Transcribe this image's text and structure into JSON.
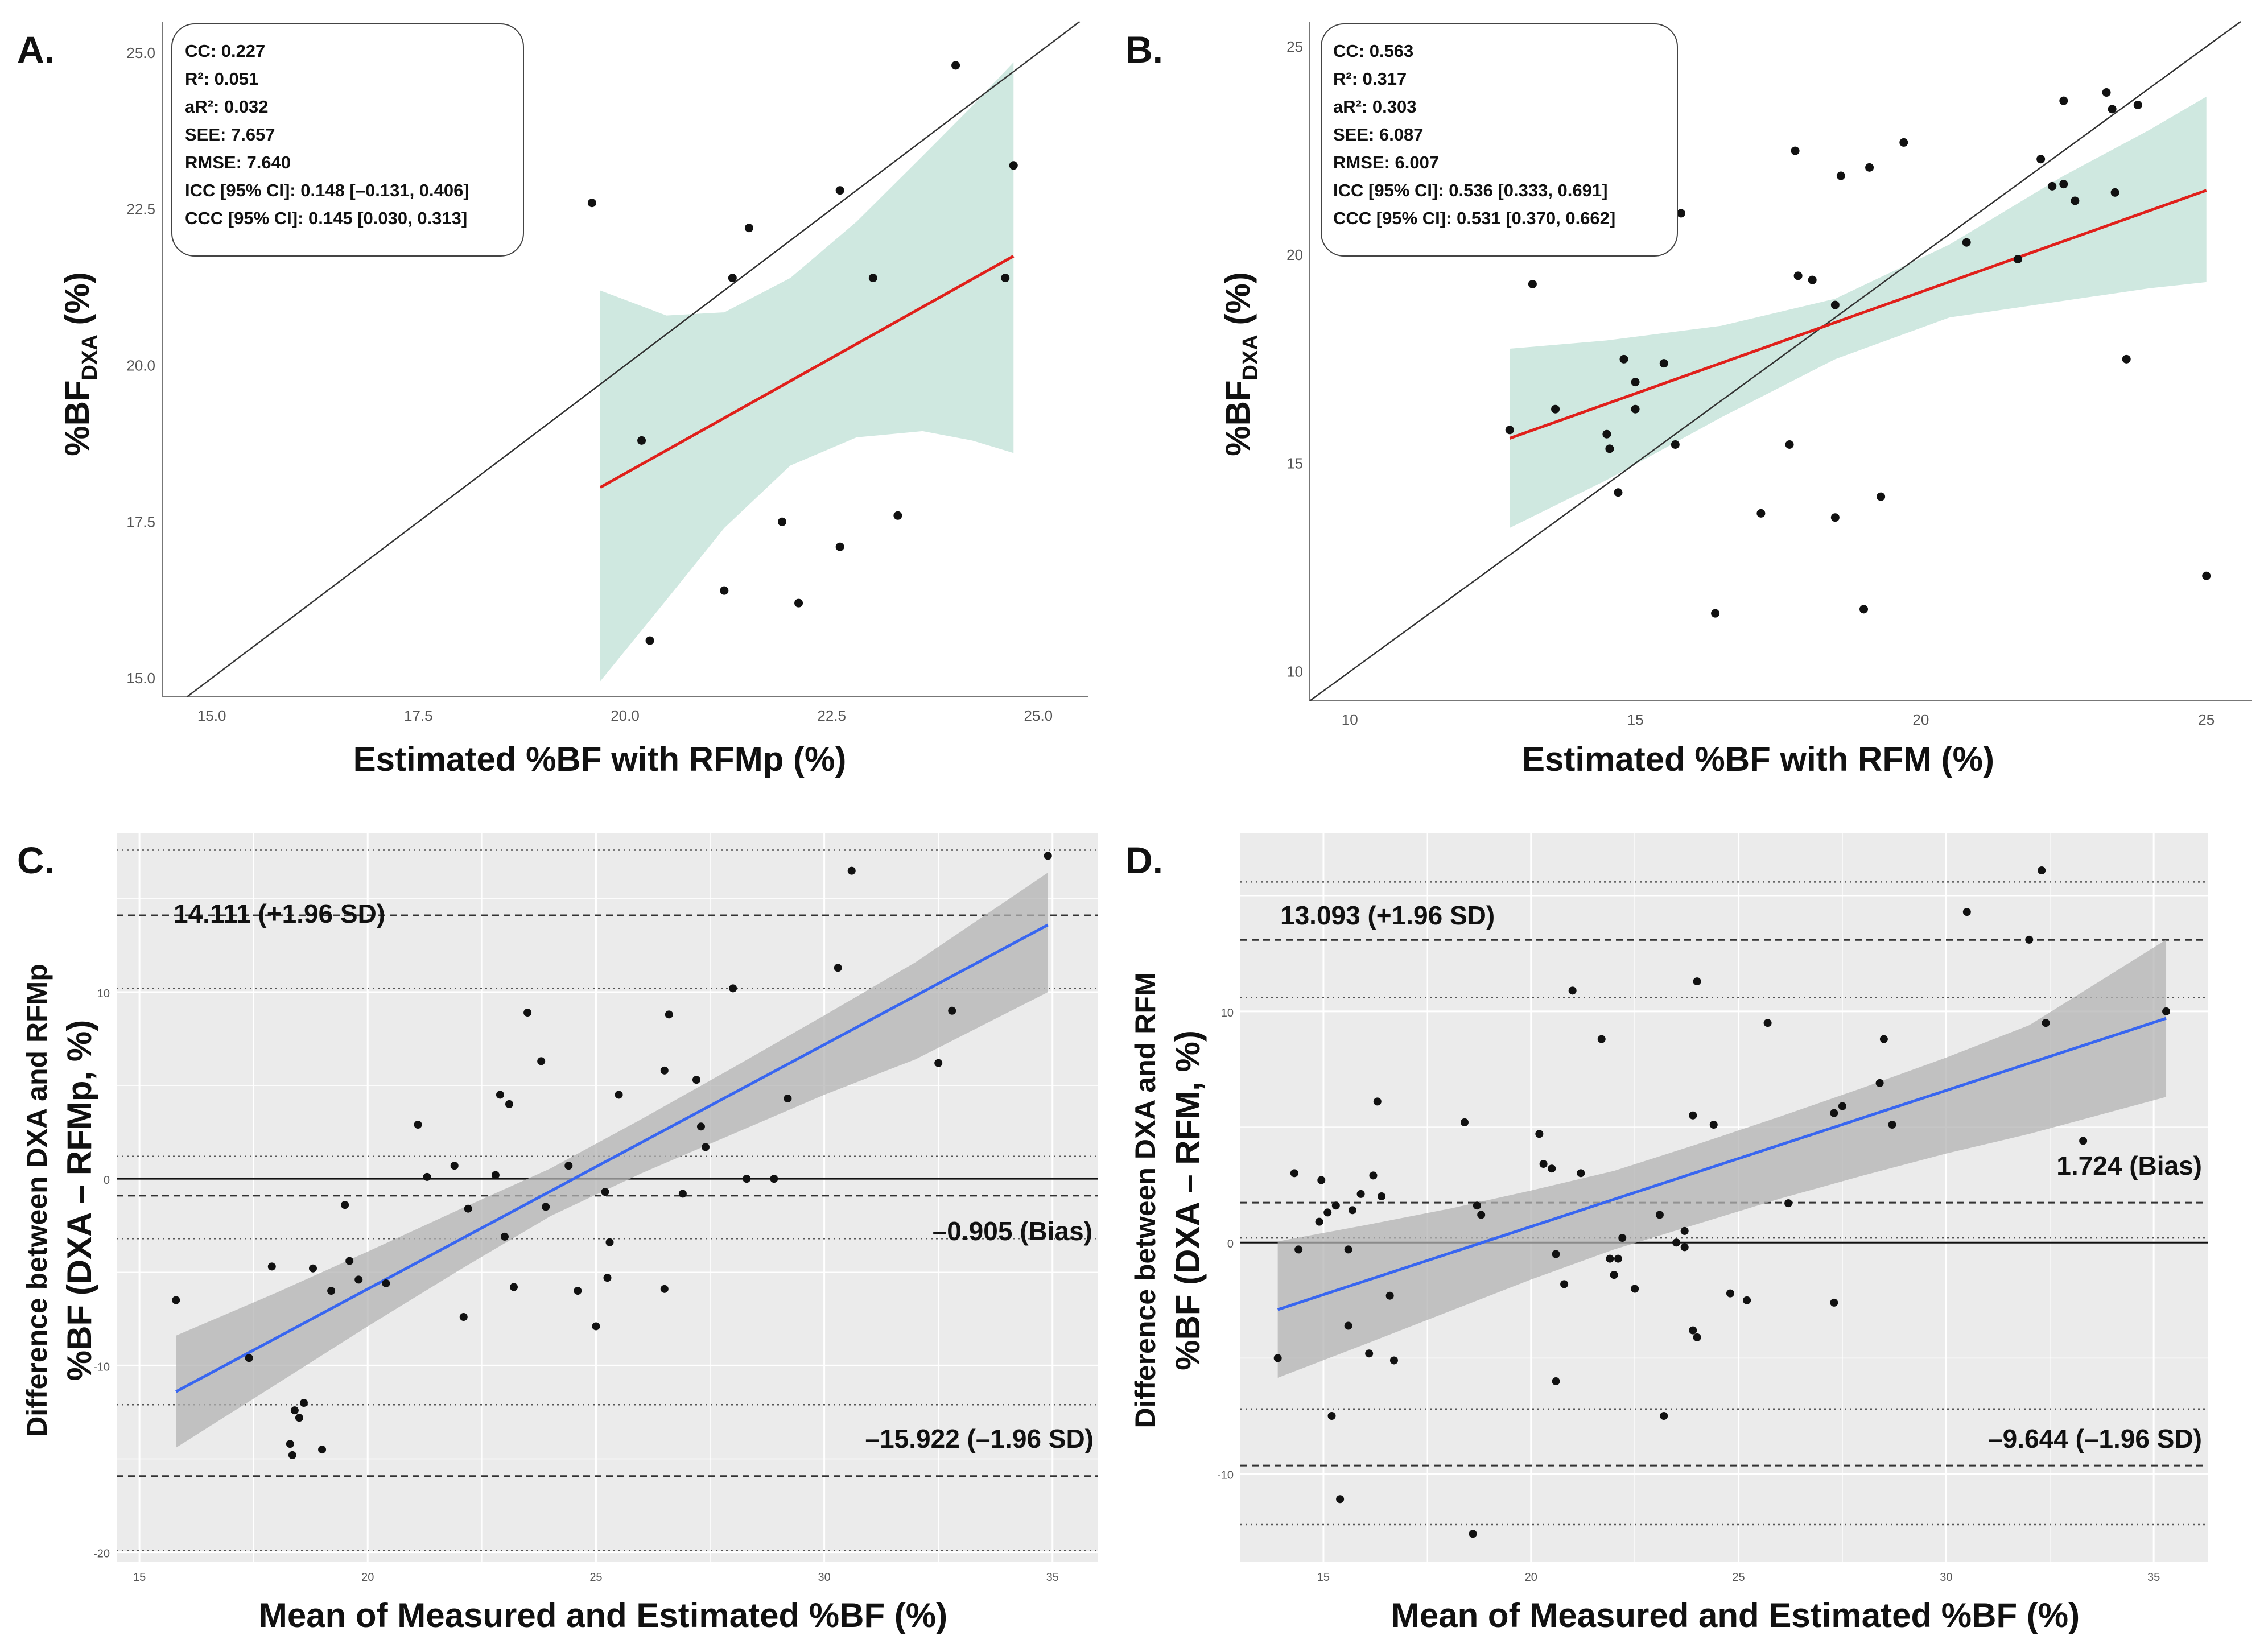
{
  "chart_data": [
    {
      "panel": "A.",
      "type": "scatter",
      "xlabel": "Estimated %BF with RFMp (%)",
      "ylabel": "%BF",
      "ylabel_sub": "DXA",
      "ylabel_tail": " (%)",
      "xlim": [
        14.4,
        25.6
      ],
      "ylim": [
        14.7,
        25.5
      ],
      "xticks": [
        "15.0",
        "17.5",
        "20.0",
        "22.5",
        "25.0"
      ],
      "yticks": [
        "15.0",
        "17.5",
        "20.0",
        "22.5",
        "25.0"
      ],
      "grid": false,
      "stats": [
        "CC: 0.227",
        "R²: 0.051",
        "aR²: 0.032",
        "SEE: 7.657",
        "RMSE: 7.640",
        "ICC [95% CI]: 0.148 [–0.131, 0.406]",
        "CCC [95% CI]: 0.145 [0.030, 0.313]"
      ],
      "points": [
        [
          19.6,
          22.6
        ],
        [
          20.2,
          18.8
        ],
        [
          20.3,
          15.6
        ],
        [
          21.2,
          16.4
        ],
        [
          21.3,
          21.4
        ],
        [
          21.5,
          22.2
        ],
        [
          21.9,
          17.5
        ],
        [
          22.1,
          16.2
        ],
        [
          22.6,
          17.1
        ],
        [
          22.6,
          22.8
        ],
        [
          23.0,
          21.4
        ],
        [
          23.3,
          17.6
        ],
        [
          24.0,
          24.8
        ],
        [
          24.6,
          21.4
        ],
        [
          24.7,
          23.2
        ]
      ],
      "fit": {
        "x": [
          19.7,
          24.7
        ],
        "y": [
          18.05,
          21.75
        ]
      },
      "band": {
        "x": [
          19.7,
          20.5,
          21.2,
          22.0,
          22.8,
          23.6,
          24.2,
          24.7
        ],
        "upper": [
          21.2,
          20.8,
          20.85,
          21.4,
          22.3,
          23.35,
          24.15,
          24.85
        ],
        "lower": [
          14.95,
          16.25,
          17.4,
          18.4,
          18.85,
          18.95,
          18.8,
          18.6
        ]
      },
      "identity_line": true,
      "colors": {
        "fit": "#e0201b",
        "band": "#cfe8e0",
        "points": "#111111"
      }
    },
    {
      "panel": "B.",
      "type": "scatter",
      "xlabel": "Estimated %BF with RFM (%)",
      "ylabel": "%BF",
      "ylabel_sub": "DXA",
      "ylabel_tail": " (%)",
      "xlim": [
        9.3,
        25.8
      ],
      "ylim": [
        9.3,
        25.6
      ],
      "xticks": [
        "10",
        "15",
        "20",
        "25"
      ],
      "yticks": [
        "10",
        "15",
        "20",
        "25"
      ],
      "grid": false,
      "stats": [
        "CC: 0.563",
        "R²: 0.317",
        "aR²: 0.303",
        "SEE: 6.087",
        "RMSE: 6.007",
        "ICC [95% CI]: 0.536 [0.333, 0.691]",
        "CCC [95% CI]: 0.531 [0.370, 0.662]"
      ],
      "points": [
        [
          12.8,
          15.8
        ],
        [
          13.2,
          19.3
        ],
        [
          13.6,
          16.3
        ],
        [
          14.5,
          15.7
        ],
        [
          14.55,
          15.35
        ],
        [
          14.7,
          14.3
        ],
        [
          14.8,
          17.5
        ],
        [
          15.0,
          16.95
        ],
        [
          15.0,
          16.3
        ],
        [
          15.5,
          17.4
        ],
        [
          15.7,
          15.45
        ],
        [
          15.8,
          21.0
        ],
        [
          16.4,
          11.4
        ],
        [
          17.2,
          13.8
        ],
        [
          17.8,
          22.5
        ],
        [
          17.7,
          15.45
        ],
        [
          17.85,
          19.5
        ],
        [
          18.1,
          19.4
        ],
        [
          18.5,
          18.8
        ],
        [
          18.5,
          13.7
        ],
        [
          18.6,
          21.9
        ],
        [
          19.1,
          22.1
        ],
        [
          19.0,
          11.5
        ],
        [
          19.3,
          14.2
        ],
        [
          19.7,
          22.7
        ],
        [
          20.8,
          20.3
        ],
        [
          21.7,
          19.9
        ],
        [
          22.1,
          22.3
        ],
        [
          22.3,
          21.65
        ],
        [
          22.5,
          23.7
        ],
        [
          22.5,
          21.7
        ],
        [
          22.7,
          21.3
        ],
        [
          23.25,
          23.9
        ],
        [
          23.35,
          23.5
        ],
        [
          23.4,
          21.5
        ],
        [
          23.6,
          17.5
        ],
        [
          23.8,
          23.6
        ],
        [
          25.0,
          12.3
        ]
      ],
      "fit": {
        "x": [
          12.8,
          25.0
        ],
        "y": [
          15.6,
          21.55
        ]
      },
      "band": {
        "x": [
          12.8,
          14.5,
          16.5,
          18.5,
          20.5,
          22.5,
          24.0,
          25.0
        ],
        "upper": [
          17.75,
          17.95,
          18.3,
          18.95,
          20.25,
          21.9,
          23.0,
          23.8
        ],
        "lower": [
          13.45,
          14.6,
          16.1,
          17.5,
          18.5,
          18.9,
          19.2,
          19.35
        ]
      },
      "identity_line": true,
      "colors": {
        "fit": "#e0201b",
        "band": "#cfe8e0",
        "points": "#111111"
      }
    },
    {
      "panel": "C.",
      "type": "scatter",
      "xlabel": "Mean of Measured and Estimated %BF (%)",
      "ylabel": "Difference between DXA and RFMp",
      "ylabel2": "%BF (DXA – RFMp, %)",
      "xlim": [
        14.5,
        36.0
      ],
      "ylim": [
        -20.5,
        18.5
      ],
      "xticks": [
        "15",
        "20",
        "25",
        "30",
        "35"
      ],
      "yticks": [
        "-20",
        "-10",
        "0",
        "10"
      ],
      "grid": true,
      "limits": {
        "upper": 14.111,
        "bias": -0.905,
        "lower": -15.922
      },
      "limit_labels": {
        "upper": "14.111 (+1.96 SD)",
        "bias": "–0.905 (Bias)",
        "lower": "–15.922 (–1.96 SD)"
      },
      "dotted_lines": [
        17.6,
        10.2,
        1.2,
        -3.2,
        -12.1,
        -19.9
      ],
      "points": [
        [
          15.8,
          -6.5
        ],
        [
          17.4,
          -9.6
        ],
        [
          17.9,
          -4.7
        ],
        [
          18.3,
          -14.2
        ],
        [
          18.35,
          -14.8
        ],
        [
          18.4,
          -12.4
        ],
        [
          18.5,
          -12.8
        ],
        [
          18.6,
          -12.0
        ],
        [
          18.8,
          -4.8
        ],
        [
          19.0,
          -14.5
        ],
        [
          19.2,
          -6.0
        ],
        [
          19.5,
          -1.4
        ],
        [
          19.6,
          -4.4
        ],
        [
          19.8,
          -5.4
        ],
        [
          20.4,
          -5.6
        ],
        [
          21.1,
          2.9
        ],
        [
          21.3,
          0.1
        ],
        [
          21.9,
          0.7
        ],
        [
          22.1,
          -7.4
        ],
        [
          22.2,
          -1.6
        ],
        [
          22.8,
          0.2
        ],
        [
          22.9,
          4.5
        ],
        [
          23.0,
          -3.1
        ],
        [
          23.1,
          4.0
        ],
        [
          23.2,
          -5.8
        ],
        [
          23.5,
          8.9
        ],
        [
          23.8,
          6.3
        ],
        [
          23.9,
          -1.5
        ],
        [
          24.4,
          0.7
        ],
        [
          24.6,
          -6.0
        ],
        [
          25.0,
          -7.9
        ],
        [
          25.2,
          -0.7
        ],
        [
          25.25,
          -5.3
        ],
        [
          25.3,
          -3.4
        ],
        [
          25.5,
          4.5
        ],
        [
          26.5,
          5.8
        ],
        [
          26.5,
          -5.9
        ],
        [
          26.6,
          8.8
        ],
        [
          26.9,
          -0.8
        ],
        [
          27.2,
          5.3
        ],
        [
          27.3,
          2.8
        ],
        [
          27.4,
          1.7
        ],
        [
          28.0,
          10.2
        ],
        [
          28.3,
          0.0
        ],
        [
          28.9,
          0.0
        ],
        [
          29.2,
          4.3
        ],
        [
          30.3,
          11.3
        ],
        [
          30.6,
          16.5
        ],
        [
          32.5,
          6.2
        ],
        [
          32.8,
          9.0
        ],
        [
          34.9,
          17.3
        ]
      ],
      "fit": {
        "x": [
          15.8,
          34.9
        ],
        "y": [
          -11.4,
          13.6
        ]
      },
      "band": {
        "x": [
          15.8,
          18.0,
          20.0,
          22.0,
          24.0,
          26.0,
          28.0,
          30.0,
          32.0,
          34.9
        ],
        "upper": [
          -8.4,
          -6.1,
          -3.9,
          -1.65,
          0.55,
          3.2,
          5.95,
          8.75,
          11.6,
          16.4
        ],
        "lower": [
          -14.4,
          -11.0,
          -7.9,
          -4.9,
          -2.0,
          0.3,
          2.4,
          4.5,
          6.4,
          10.0
        ]
      },
      "zero_line": true,
      "colors": {
        "fit": "#3866f0",
        "band": "#b3b3b3",
        "panel_bg": "#ebebeb",
        "points": "#111111"
      }
    },
    {
      "panel": "D.",
      "type": "scatter",
      "xlabel": "Mean of Measured and Estimated %BF (%)",
      "ylabel": "Difference between DXA and RFM",
      "ylabel2": "%BF (DXA – RFM, %)",
      "xlim": [
        13.0,
        36.3
      ],
      "ylim": [
        -13.8,
        17.7
      ],
      "xticks": [
        "15",
        "20",
        "25",
        "30",
        "35"
      ],
      "yticks": [
        "-10",
        "0",
        "10"
      ],
      "grid": true,
      "limits": {
        "upper": 13.093,
        "bias": 1.724,
        "lower": -9.644
      },
      "limit_labels": {
        "upper": "13.093 (+1.96 SD)",
        "bias": "1.724 (Bias)",
        "lower": "–9.644 (–1.96 SD)"
      },
      "dotted_lines": [
        15.6,
        10.6,
        0.2,
        -7.2,
        -12.2
      ],
      "points": [
        [
          13.9,
          -5.0
        ],
        [
          14.3,
          3.0
        ],
        [
          14.4,
          -0.3
        ],
        [
          14.9,
          0.9
        ],
        [
          14.95,
          2.7
        ],
        [
          15.1,
          1.3
        ],
        [
          15.2,
          -7.5
        ],
        [
          15.3,
          1.6
        ],
        [
          15.4,
          -11.1
        ],
        [
          15.6,
          -3.6
        ],
        [
          15.6,
          -0.3
        ],
        [
          15.7,
          1.4
        ],
        [
          15.9,
          2.1
        ],
        [
          16.1,
          -4.8
        ],
        [
          16.2,
          2.9
        ],
        [
          16.3,
          6.1
        ],
        [
          16.4,
          2.0
        ],
        [
          16.6,
          -2.3
        ],
        [
          16.7,
          -5.1
        ],
        [
          18.4,
          5.2
        ],
        [
          18.6,
          -12.6
        ],
        [
          18.7,
          1.6
        ],
        [
          18.8,
          1.2
        ],
        [
          20.2,
          4.7
        ],
        [
          20.3,
          3.4
        ],
        [
          20.5,
          3.2
        ],
        [
          20.6,
          -6.0
        ],
        [
          20.6,
          -0.5
        ],
        [
          20.8,
          -1.8
        ],
        [
          21.0,
          10.9
        ],
        [
          21.2,
          3.0
        ],
        [
          21.7,
          8.8
        ],
        [
          21.9,
          -0.7
        ],
        [
          22.0,
          -1.4
        ],
        [
          22.1,
          -0.7
        ],
        [
          22.2,
          0.2
        ],
        [
          22.5,
          -2.0
        ],
        [
          23.1,
          1.2
        ],
        [
          23.2,
          -7.5
        ],
        [
          23.5,
          0.0
        ],
        [
          23.7,
          0.5
        ],
        [
          23.7,
          -0.2
        ],
        [
          23.9,
          -3.8
        ],
        [
          23.9,
          5.5
        ],
        [
          24.0,
          -4.1
        ],
        [
          24.0,
          11.3
        ],
        [
          24.4,
          5.1
        ],
        [
          24.8,
          -2.2
        ],
        [
          25.2,
          -2.5
        ],
        [
          25.7,
          9.5
        ],
        [
          26.2,
          1.7
        ],
        [
          27.3,
          -2.6
        ],
        [
          27.3,
          5.6
        ],
        [
          27.5,
          5.9
        ],
        [
          28.4,
          6.9
        ],
        [
          28.5,
          8.8
        ],
        [
          28.7,
          5.1
        ],
        [
          30.5,
          14.3
        ],
        [
          32.0,
          13.1
        ],
        [
          32.3,
          16.1
        ],
        [
          32.4,
          9.5
        ],
        [
          33.3,
          4.4
        ],
        [
          35.3,
          10.0
        ]
      ],
      "fit": {
        "x": [
          13.9,
          35.3
        ],
        "y": [
          -2.9,
          9.7
        ]
      },
      "band": {
        "x": [
          13.9,
          16.0,
          18.0,
          20.0,
          22.0,
          24.0,
          26.0,
          28.0,
          30.0,
          32.0,
          35.3
        ],
        "upper": [
          0.05,
          0.75,
          1.45,
          2.25,
          3.1,
          4.25,
          5.45,
          6.7,
          8.0,
          9.4,
          13.1
        ],
        "lower": [
          -5.85,
          -4.4,
          -3.0,
          -1.6,
          -0.3,
          0.8,
          1.9,
          2.9,
          3.85,
          4.7,
          6.3
        ]
      },
      "zero_line": true,
      "colors": {
        "fit": "#3866f0",
        "band": "#b3b3b3",
        "panel_bg": "#ebebeb",
        "points": "#111111"
      }
    }
  ]
}
